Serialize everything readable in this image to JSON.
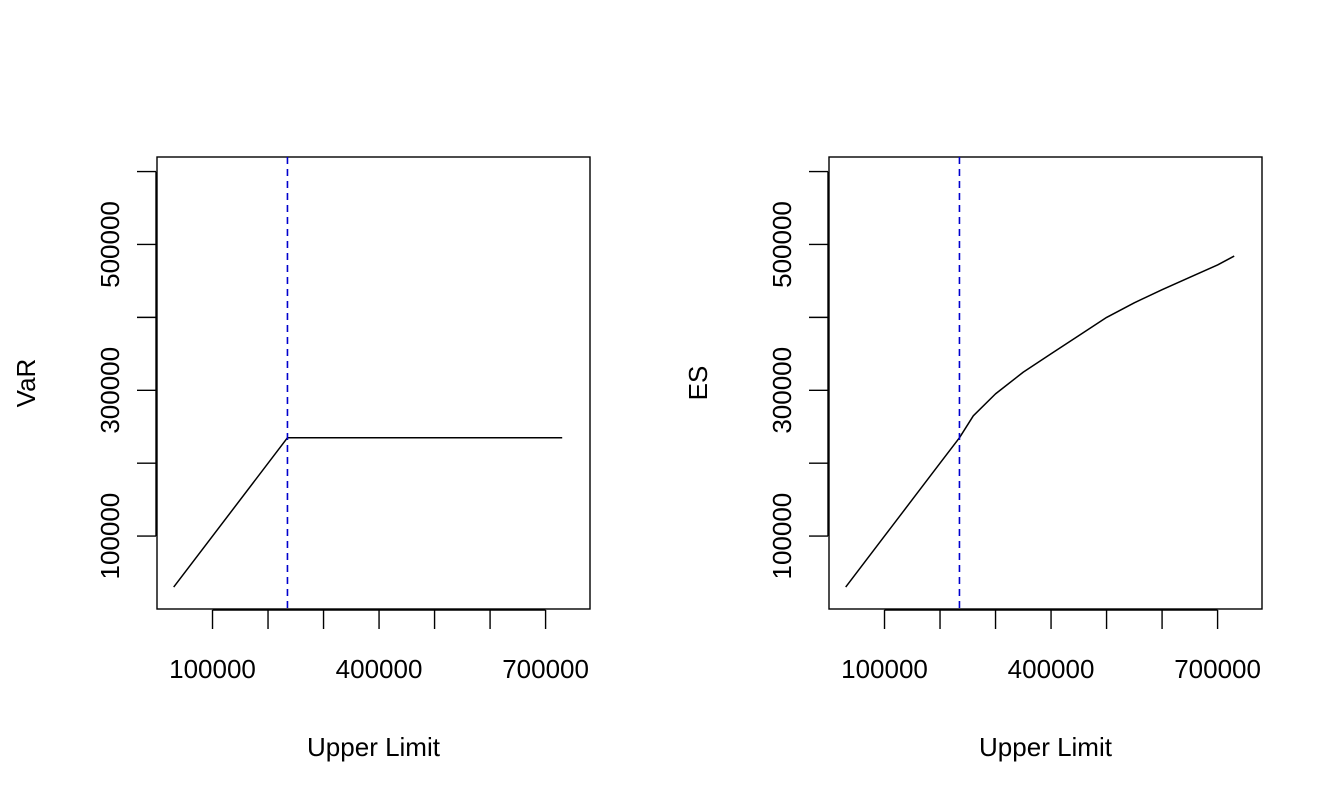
{
  "chart_data": [
    {
      "type": "line",
      "title": "",
      "xlabel": "Upper Limit",
      "ylabel": "VaR",
      "xlim": [
        0,
        780000
      ],
      "ylim": [
        0,
        620000
      ],
      "x_ticks": [
        100000,
        200000,
        300000,
        400000,
        500000,
        600000,
        700000
      ],
      "x_tick_labels": [
        "100000",
        "",
        "",
        "400000",
        "",
        "",
        "700000"
      ],
      "y_ticks": [
        100000,
        200000,
        300000,
        400000,
        500000,
        600000
      ],
      "y_tick_labels": [
        "100000",
        "",
        "300000",
        "",
        "500000",
        ""
      ],
      "grid": false,
      "vline": {
        "x": 235000,
        "color": "#0000CD",
        "style": "dashed"
      },
      "series": [
        {
          "color": "#000000",
          "x": [
            30000,
            235000,
            260000,
            400000,
            600000,
            730000
          ],
          "y": [
            30000,
            235000,
            235000,
            235000,
            235000,
            235000
          ]
        }
      ]
    },
    {
      "type": "line",
      "title": "",
      "xlabel": "Upper Limit",
      "ylabel": "ES",
      "xlim": [
        0,
        780000
      ],
      "ylim": [
        0,
        620000
      ],
      "x_ticks": [
        100000,
        200000,
        300000,
        400000,
        500000,
        600000,
        700000
      ],
      "x_tick_labels": [
        "100000",
        "",
        "",
        "400000",
        "",
        "",
        "700000"
      ],
      "y_ticks": [
        100000,
        200000,
        300000,
        400000,
        500000,
        600000
      ],
      "y_tick_labels": [
        "100000",
        "",
        "300000",
        "",
        "500000",
        ""
      ],
      "grid": false,
      "vline": {
        "x": 235000,
        "color": "#0000CD",
        "style": "dashed"
      },
      "series": [
        {
          "color": "#000000",
          "x": [
            30000,
            100000,
            150000,
            200000,
            235000,
            260000,
            300000,
            350000,
            400000,
            450000,
            500000,
            550000,
            600000,
            650000,
            700000,
            730000
          ],
          "y": [
            30000,
            100000,
            150000,
            200000,
            235000,
            265000,
            295000,
            325000,
            350000,
            375000,
            400000,
            420000,
            438000,
            455000,
            472000,
            484000
          ]
        }
      ]
    }
  ]
}
